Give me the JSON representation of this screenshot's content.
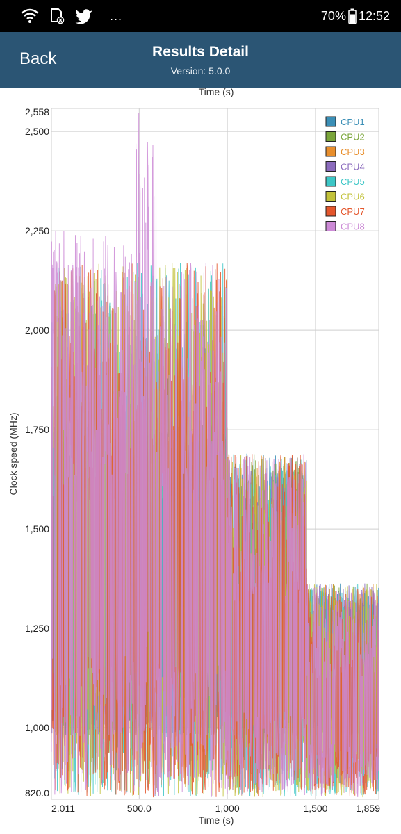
{
  "status_bar": {
    "battery_percent": "70%",
    "time": "12:52",
    "more": "...",
    "icons": [
      "wifi-icon",
      "sd-card-icon",
      "twitter-icon",
      "battery-icon"
    ]
  },
  "header": {
    "back_label": "Back",
    "title": "Results Detail",
    "version": "Version: 5.0.0"
  },
  "chart_data": {
    "type": "line",
    "xlabel": "Time (s)",
    "xlabel_top": "Time (s)",
    "ylabel": "Clock speed (MHz)",
    "xlim": [
      2.011,
      1859
    ],
    "ylim": [
      820.0,
      2558
    ],
    "x_ticks": [
      {
        "value": 2.011,
        "label": "2.011"
      },
      {
        "value": 500,
        "label": "500.0"
      },
      {
        "value": 1000,
        "label": "1,000"
      },
      {
        "value": 1500,
        "label": "1,500"
      },
      {
        "value": 1859,
        "label": "1,859"
      }
    ],
    "y_ticks": [
      {
        "value": 820,
        "label": "820.0"
      },
      {
        "value": 1000,
        "label": "1,000"
      },
      {
        "value": 1250,
        "label": "1,250"
      },
      {
        "value": 1500,
        "label": "1,500"
      },
      {
        "value": 1750,
        "label": "1,750"
      },
      {
        "value": 2000,
        "label": "2,000"
      },
      {
        "value": 2250,
        "label": "2,250"
      },
      {
        "value": 2500,
        "label": "2,500"
      },
      {
        "value": 2558,
        "label": "2,558"
      }
    ],
    "grid": true,
    "legend_position": "top-right",
    "series": [
      {
        "name": "CPU1",
        "color": "#3b8fb6",
        "segments": [
          {
            "x": [
              2,
              1000
            ],
            "low": 980,
            "high": 1766
          },
          {
            "x": [
              1000,
              1450
            ],
            "low": 980,
            "high": 1690
          },
          {
            "x": [
              1450,
              1859
            ],
            "low": 980,
            "high": 1363
          }
        ]
      },
      {
        "name": "CPU2",
        "color": "#7aa53a",
        "segments": [
          {
            "x": [
              2,
              1000
            ],
            "low": 980,
            "high": 1766
          },
          {
            "x": [
              1000,
              1450
            ],
            "low": 980,
            "high": 1690
          },
          {
            "x": [
              1450,
              1859
            ],
            "low": 980,
            "high": 1363
          }
        ]
      },
      {
        "name": "CPU3",
        "color": "#e88e2c",
        "segments": [
          {
            "x": [
              2,
              1000
            ],
            "low": 980,
            "high": 1766
          },
          {
            "x": [
              1000,
              1450
            ],
            "low": 980,
            "high": 1690
          },
          {
            "x": [
              1450,
              1859
            ],
            "low": 980,
            "high": 1363
          }
        ]
      },
      {
        "name": "CPU4",
        "color": "#8b6bbd",
        "segments": [
          {
            "x": [
              2,
              1000
            ],
            "low": 980,
            "high": 1766
          },
          {
            "x": [
              1000,
              1450
            ],
            "low": 980,
            "high": 1690
          },
          {
            "x": [
              1450,
              1859
            ],
            "low": 980,
            "high": 1363
          }
        ]
      },
      {
        "name": "CPU5",
        "color": "#3cc6c6",
        "segments": [
          {
            "x": [
              2,
              1000
            ],
            "low": 825,
            "high": 2170
          },
          {
            "x": [
              1000,
              1450
            ],
            "low": 825,
            "high": 1690
          },
          {
            "x": [
              1450,
              1859
            ],
            "low": 825,
            "high": 1363
          }
        ]
      },
      {
        "name": "CPU6",
        "color": "#c2c23a",
        "segments": [
          {
            "x": [
              2,
              1000
            ],
            "low": 825,
            "high": 2170
          },
          {
            "x": [
              1000,
              1450
            ],
            "low": 825,
            "high": 1690
          },
          {
            "x": [
              1450,
              1859
            ],
            "low": 825,
            "high": 1363
          }
        ]
      },
      {
        "name": "CPU7",
        "color": "#e4562c",
        "segments": [
          {
            "x": [
              2,
              1000
            ],
            "low": 825,
            "high": 2170
          },
          {
            "x": [
              1000,
              1450
            ],
            "low": 825,
            "high": 1690
          },
          {
            "x": [
              1450,
              1859
            ],
            "low": 825,
            "high": 1363
          }
        ]
      },
      {
        "name": "CPU8",
        "color": "#cc8ad6",
        "segments": [
          {
            "x": [
              2,
              480
            ],
            "low": 825,
            "high": 2250
          },
          {
            "x": [
              480,
              600
            ],
            "low": 825,
            "high": 2558
          },
          {
            "x": [
              600,
              1000
            ],
            "low": 825,
            "high": 2170
          },
          {
            "x": [
              1000,
              1450
            ],
            "low": 825,
            "high": 1690
          },
          {
            "x": [
              1450,
              1859
            ],
            "low": 825,
            "high": 1363
          }
        ]
      }
    ]
  }
}
